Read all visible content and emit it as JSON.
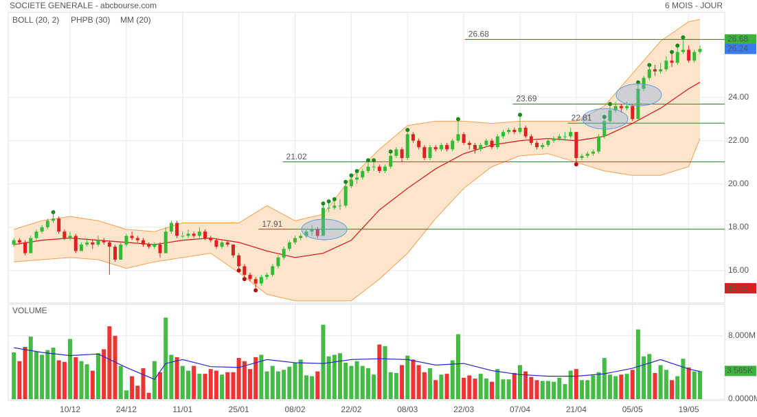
{
  "chart_data": [
    {
      "type": "candlestick",
      "title": "SOCIETE GENERALE - abcbourse.com",
      "subtitle": "6 MOIS - JOUR",
      "xlim": [
        -1,
        126.4
      ],
      "ylim": [
        14.5,
        27.93
      ],
      "yticks": [
        {
          "value": 16,
          "label": "16.00"
        },
        {
          "value": 18,
          "label": "18.00"
        },
        {
          "value": 20,
          "label": "20.00"
        },
        {
          "value": 22,
          "label": "22.00"
        },
        {
          "value": 24,
          "label": "24.00"
        }
      ],
      "grid": true,
      "up_color": "#33bb33",
      "down_color": "#e02020",
      "ohlc": [
        [
          17.2,
          17.5,
          17.1,
          17.4
        ],
        [
          17.4,
          17.5,
          17.2,
          17.3
        ],
        [
          17.3,
          17.4,
          16.7,
          16.8
        ],
        [
          16.8,
          17.6,
          16.8,
          17.5
        ],
        [
          17.5,
          17.9,
          17.4,
          17.8
        ],
        [
          17.8,
          18.1,
          17.7,
          18.0
        ],
        [
          18.0,
          18.4,
          17.9,
          18.3
        ],
        [
          18.3,
          18.6,
          18.2,
          18.4
        ],
        [
          18.4,
          18.5,
          17.7,
          17.8
        ],
        [
          17.8,
          17.9,
          17.4,
          17.5
        ],
        [
          17.5,
          17.8,
          17.4,
          17.6
        ],
        [
          17.6,
          17.7,
          16.8,
          16.9
        ],
        [
          16.9,
          17.3,
          16.9,
          17.2
        ],
        [
          17.2,
          17.5,
          17.1,
          17.3
        ],
        [
          17.3,
          17.4,
          17.0,
          17.2
        ],
        [
          17.2,
          17.6,
          17.1,
          17.4
        ],
        [
          17.4,
          17.5,
          17.2,
          17.3
        ],
        [
          17.3,
          17.4,
          15.8,
          17.1
        ],
        [
          17.1,
          17.2,
          16.4,
          16.5
        ],
        [
          16.5,
          17.3,
          16.5,
          17.2
        ],
        [
          17.2,
          17.7,
          17.1,
          17.6
        ],
        [
          17.6,
          17.8,
          17.4,
          17.5
        ],
        [
          17.5,
          17.6,
          17.3,
          17.4
        ],
        [
          17.4,
          17.5,
          17.1,
          17.2
        ],
        [
          17.2,
          17.3,
          17.0,
          17.1
        ],
        [
          17.1,
          17.3,
          17.0,
          17.2
        ],
        [
          17.2,
          17.3,
          16.6,
          16.8
        ],
        [
          16.8,
          18.0,
          16.8,
          17.8
        ],
        [
          17.8,
          18.3,
          17.7,
          18.2
        ],
        [
          18.2,
          18.3,
          17.5,
          17.6
        ],
        [
          17.6,
          17.8,
          17.5,
          17.6
        ],
        [
          17.6,
          17.9,
          17.5,
          17.7
        ],
        [
          17.7,
          17.8,
          17.5,
          17.6
        ],
        [
          17.6,
          18.0,
          17.5,
          17.8
        ],
        [
          17.8,
          17.9,
          17.4,
          17.5
        ],
        [
          17.5,
          17.6,
          17.3,
          17.4
        ],
        [
          17.4,
          17.5,
          17.0,
          17.1
        ],
        [
          17.1,
          17.4,
          17.0,
          17.3
        ],
        [
          17.3,
          17.4,
          17.1,
          17.2
        ],
        [
          17.2,
          17.2,
          16.6,
          16.7
        ],
        [
          16.7,
          16.8,
          16.1,
          16.2
        ],
        [
          16.2,
          16.3,
          15.7,
          15.8
        ],
        [
          15.8,
          15.9,
          15.5,
          15.6
        ],
        [
          15.6,
          15.7,
          15.18,
          15.4
        ],
        [
          15.4,
          15.8,
          15.3,
          15.7
        ],
        [
          15.7,
          15.9,
          15.6,
          15.8
        ],
        [
          15.8,
          16.3,
          15.7,
          16.2
        ],
        [
          16.2,
          16.7,
          16.1,
          16.6
        ],
        [
          16.6,
          17.1,
          16.5,
          17.0
        ],
        [
          17.0,
          17.4,
          16.9,
          17.3
        ],
        [
          17.3,
          17.6,
          17.2,
          17.5
        ],
        [
          17.5,
          17.7,
          17.4,
          17.6
        ],
        [
          17.6,
          17.9,
          17.5,
          17.8
        ],
        [
          17.8,
          18.1,
          17.6,
          17.9
        ],
        [
          17.9,
          18.0,
          17.5,
          17.6
        ],
        [
          17.6,
          19.0,
          17.6,
          18.9
        ],
        [
          18.9,
          19.1,
          18.7,
          18.9
        ],
        [
          18.9,
          19.2,
          18.8,
          19.0
        ],
        [
          19.0,
          19.3,
          18.8,
          19.0
        ],
        [
          19.0,
          20.0,
          18.9,
          19.9
        ],
        [
          19.9,
          20.3,
          19.8,
          20.2
        ],
        [
          20.2,
          20.5,
          20.0,
          20.3
        ],
        [
          20.3,
          20.7,
          20.2,
          20.6
        ],
        [
          20.6,
          21.0,
          20.5,
          20.8
        ],
        [
          20.8,
          21.0,
          20.6,
          20.8
        ],
        [
          20.8,
          20.9,
          20.5,
          20.6
        ],
        [
          20.6,
          20.9,
          20.5,
          20.8
        ],
        [
          20.8,
          21.4,
          20.7,
          21.3
        ],
        [
          21.3,
          21.7,
          21.2,
          21.6
        ],
        [
          21.6,
          21.7,
          21.0,
          21.2
        ],
        [
          21.2,
          22.4,
          21.1,
          22.3
        ],
        [
          22.3,
          22.4,
          21.9,
          22.0
        ],
        [
          22.0,
          22.1,
          21.6,
          21.7
        ],
        [
          21.7,
          21.8,
          21.1,
          21.2
        ],
        [
          21.2,
          21.8,
          21.1,
          21.7
        ],
        [
          21.7,
          21.8,
          21.5,
          21.6
        ],
        [
          21.6,
          21.9,
          21.5,
          21.8
        ],
        [
          21.8,
          21.9,
          21.5,
          21.6
        ],
        [
          21.6,
          22.1,
          21.5,
          22.0
        ],
        [
          22.0,
          22.9,
          21.9,
          22.3
        ],
        [
          22.3,
          22.4,
          21.8,
          21.9
        ],
        [
          21.9,
          22.0,
          21.6,
          21.8
        ],
        [
          21.8,
          21.9,
          21.4,
          21.6
        ],
        [
          21.6,
          21.9,
          21.5,
          21.8
        ],
        [
          21.8,
          22.1,
          21.7,
          22.0
        ],
        [
          22.0,
          22.1,
          21.6,
          21.7
        ],
        [
          21.7,
          22.3,
          21.6,
          22.2
        ],
        [
          22.2,
          22.5,
          22.1,
          22.4
        ],
        [
          22.4,
          22.6,
          22.3,
          22.5
        ],
        [
          22.5,
          22.6,
          22.3,
          22.4
        ],
        [
          22.4,
          23.1,
          22.3,
          22.6
        ],
        [
          22.6,
          22.7,
          22.1,
          22.2
        ],
        [
          22.2,
          22.3,
          21.8,
          21.9
        ],
        [
          21.9,
          22.0,
          21.6,
          21.7
        ],
        [
          21.7,
          21.9,
          21.6,
          21.8
        ],
        [
          21.8,
          22.1,
          21.7,
          22.0
        ],
        [
          22.0,
          22.2,
          21.9,
          22.1
        ],
        [
          22.1,
          22.3,
          22.0,
          22.2
        ],
        [
          22.2,
          22.4,
          22.0,
          22.2
        ],
        [
          22.2,
          22.6,
          22.1,
          22.4
        ],
        [
          22.4,
          22.4,
          21.0,
          21.2
        ],
        [
          21.2,
          21.4,
          21.1,
          21.3
        ],
        [
          21.3,
          21.5,
          21.2,
          21.4
        ],
        [
          21.4,
          21.6,
          21.3,
          21.5
        ],
        [
          21.5,
          22.3,
          21.4,
          22.2
        ],
        [
          22.2,
          23.0,
          22.1,
          22.9
        ],
        [
          22.9,
          23.6,
          22.8,
          23.4
        ],
        [
          23.4,
          23.8,
          23.3,
          23.6
        ],
        [
          23.6,
          23.7,
          23.3,
          23.5
        ],
        [
          23.5,
          23.8,
          23.4,
          23.6
        ],
        [
          23.6,
          23.7,
          22.9,
          23.0
        ],
        [
          23.0,
          24.6,
          23.0,
          24.4
        ],
        [
          24.4,
          25.0,
          24.3,
          24.9
        ],
        [
          24.9,
          25.4,
          24.8,
          25.3
        ],
        [
          25.3,
          25.5,
          25.0,
          25.2
        ],
        [
          25.2,
          25.6,
          25.1,
          25.3
        ],
        [
          25.3,
          25.9,
          25.2,
          25.7
        ],
        [
          25.7,
          26.0,
          25.4,
          25.6
        ],
        [
          25.6,
          26.3,
          25.5,
          26.1
        ],
        [
          26.1,
          26.68,
          26.0,
          26.2
        ],
        [
          26.2,
          26.4,
          25.6,
          25.7
        ],
        [
          25.7,
          26.2,
          25.6,
          26.1
        ],
        [
          26.1,
          26.4,
          26.0,
          26.24
        ]
      ],
      "bollinger": {
        "name": "BOLL (20, 2)",
        "color": "#f0a050",
        "fill": "#fde5cc",
        "x": [
          0,
          5,
          10,
          15,
          20,
          25,
          30,
          35,
          40,
          45,
          50,
          55,
          60,
          65,
          70,
          75,
          80,
          85,
          90,
          95,
          100,
          105,
          110,
          115,
          120,
          122
        ],
        "upper": [
          17.9,
          18.3,
          18.5,
          18.3,
          17.9,
          17.8,
          18.2,
          18.2,
          18.2,
          19.0,
          18.3,
          18.6,
          20.3,
          21.6,
          22.7,
          22.9,
          22.9,
          22.8,
          22.9,
          22.9,
          22.9,
          23.6,
          25.1,
          26.6,
          27.5,
          27.6
        ],
        "lower": [
          16.4,
          16.5,
          16.6,
          16.5,
          16.1,
          16.4,
          16.6,
          16.8,
          15.9,
          14.9,
          14.6,
          14.6,
          14.6,
          15.6,
          16.8,
          18.4,
          19.8,
          20.8,
          21.3,
          21.4,
          21.0,
          20.6,
          20.4,
          20.4,
          20.8,
          22.1
        ]
      },
      "mm": {
        "name": "MM (20)",
        "color": "#d42020",
        "x": [
          0,
          5,
          10,
          15,
          20,
          25,
          30,
          35,
          40,
          45,
          50,
          55,
          60,
          65,
          70,
          75,
          80,
          85,
          90,
          95,
          100,
          105,
          110,
          115,
          120,
          122
        ],
        "values": [
          17.2,
          17.4,
          17.5,
          17.4,
          17.3,
          17.2,
          17.4,
          17.5,
          17.3,
          16.9,
          16.6,
          16.8,
          17.4,
          18.8,
          19.8,
          20.7,
          21.4,
          21.8,
          22.0,
          22.1,
          22.0,
          22.2,
          22.8,
          23.5,
          24.4,
          24.7
        ]
      },
      "phpb": {
        "name": "PHPB (30)",
        "color": "#1a8a1a",
        "low_color": "#b01010",
        "highs": [
          7,
          55,
          56,
          57,
          59,
          60,
          61,
          63,
          64,
          67,
          70,
          79,
          90,
          105,
          106,
          111,
          113,
          117,
          118,
          119
        ],
        "lows": [
          40,
          41,
          43,
          100
        ]
      },
      "levels": [
        {
          "value": 26.68,
          "color": "#d42020"
        },
        {
          "value": 23.69,
          "color": "#1a8a1a"
        },
        {
          "value": 22.81,
          "color": "#1a8a1a"
        },
        {
          "value": 21.02,
          "color": "#1a8a1a"
        },
        {
          "value": 17.91,
          "color": "#1a8a1a"
        }
      ],
      "markers": [
        {
          "value": 26.68,
          "color": "#3cb43c",
          "text_color": "#111"
        },
        {
          "value": 26.24,
          "color": "#3a7cf0",
          "text_color": "#fff"
        },
        {
          "value": 15.18,
          "color": "#d42020",
          "text_color": "#fff"
        }
      ]
    },
    {
      "type": "bar",
      "title": "VOLUME",
      "xlim": [
        -1,
        126.4
      ],
      "ylim": [
        0,
        11.8
      ],
      "yticks": [
        {
          "value": 0,
          "label": "0.0000M"
        },
        {
          "value": 8,
          "label": "8.000M"
        }
      ],
      "xticks": [
        {
          "value": 10,
          "label": "10/12"
        },
        {
          "value": 20,
          "label": "24/12"
        },
        {
          "value": 30,
          "label": "11/01"
        },
        {
          "value": 40,
          "label": "25/01"
        },
        {
          "value": 50,
          "label": "08/02"
        },
        {
          "value": 60,
          "label": "22/02"
        },
        {
          "value": 70,
          "label": "08/03"
        },
        {
          "value": 80,
          "label": "22/03"
        },
        {
          "value": 90,
          "label": "07/04"
        },
        {
          "value": 100,
          "label": "21/04"
        },
        {
          "value": 110,
          "label": "05/05"
        },
        {
          "value": 120,
          "label": "19/05"
        }
      ],
      "up_color": "#44bb44",
      "down_color": "#ee3333",
      "values": [
        5.9,
        4.8,
        6.6,
        7.9,
        6.0,
        5.6,
        6.2,
        6.5,
        4.9,
        4.7,
        7.6,
        5.3,
        4.8,
        4.4,
        3.6,
        5.8,
        6.3,
        9.2,
        8.0,
        4.2,
        1.1,
        2.9,
        1.7,
        3.9,
        0.8,
        4.8,
        3.4,
        10.3,
        5.6,
        5.3,
        4.2,
        3.6,
        4.2,
        3.2,
        3.2,
        3.8,
        3.6,
        3.1,
        3.4,
        3.4,
        5.2,
        4.8,
        3.8,
        5.3,
        5.6,
        3.5,
        4.2,
        3.5,
        3.7,
        4.1,
        4.6,
        5.0,
        3.0,
        2.9,
        3.5,
        9.4,
        5.4,
        5.6,
        5.8,
        4.6,
        4.2,
        4.8,
        4.2,
        3.9,
        3.1,
        6.9,
        6.7,
        3.4,
        3.3,
        4.3,
        5.5,
        5.0,
        4.3,
        3.4,
        3.9,
        2.4,
        3.1,
        3.2,
        4.9,
        8.2,
        2.7,
        3.0,
        2.6,
        3.2,
        2.6,
        2.2,
        3.8,
        2.5,
        2.5,
        3.3,
        4.3,
        3.5,
        2.8,
        2.4,
        2.3,
        2.3,
        2.2,
        2.7,
        1.9,
        3.6,
        3.8,
        2.4,
        2.4,
        3.0,
        3.4,
        5.2,
        3.1,
        2.9,
        3.1,
        3.2,
        3.7,
        8.8,
        5.4,
        5.7,
        3.3,
        4.3,
        3.7,
        2.4,
        2.9,
        5.1,
        4.0,
        3.5,
        3.565
      ],
      "ma": {
        "color": "#2828c8",
        "x": [
          0,
          5,
          10,
          15,
          20,
          25,
          27,
          30,
          35,
          40,
          45,
          50,
          55,
          60,
          65,
          70,
          75,
          80,
          85,
          90,
          95,
          100,
          105,
          110,
          115,
          120,
          122
        ],
        "values": [
          6.5,
          5.9,
          5.5,
          5.7,
          4.0,
          2.5,
          4.5,
          5.0,
          4.1,
          4.0,
          5.0,
          4.6,
          4.5,
          5.0,
          5.1,
          5.0,
          4.3,
          4.5,
          3.6,
          3.1,
          2.9,
          2.9,
          3.2,
          3.9,
          5.0,
          3.8,
          3.5
        ]
      },
      "last": {
        "value": 3.565,
        "label": "3 565K",
        "color": "#3cb43c"
      }
    }
  ]
}
